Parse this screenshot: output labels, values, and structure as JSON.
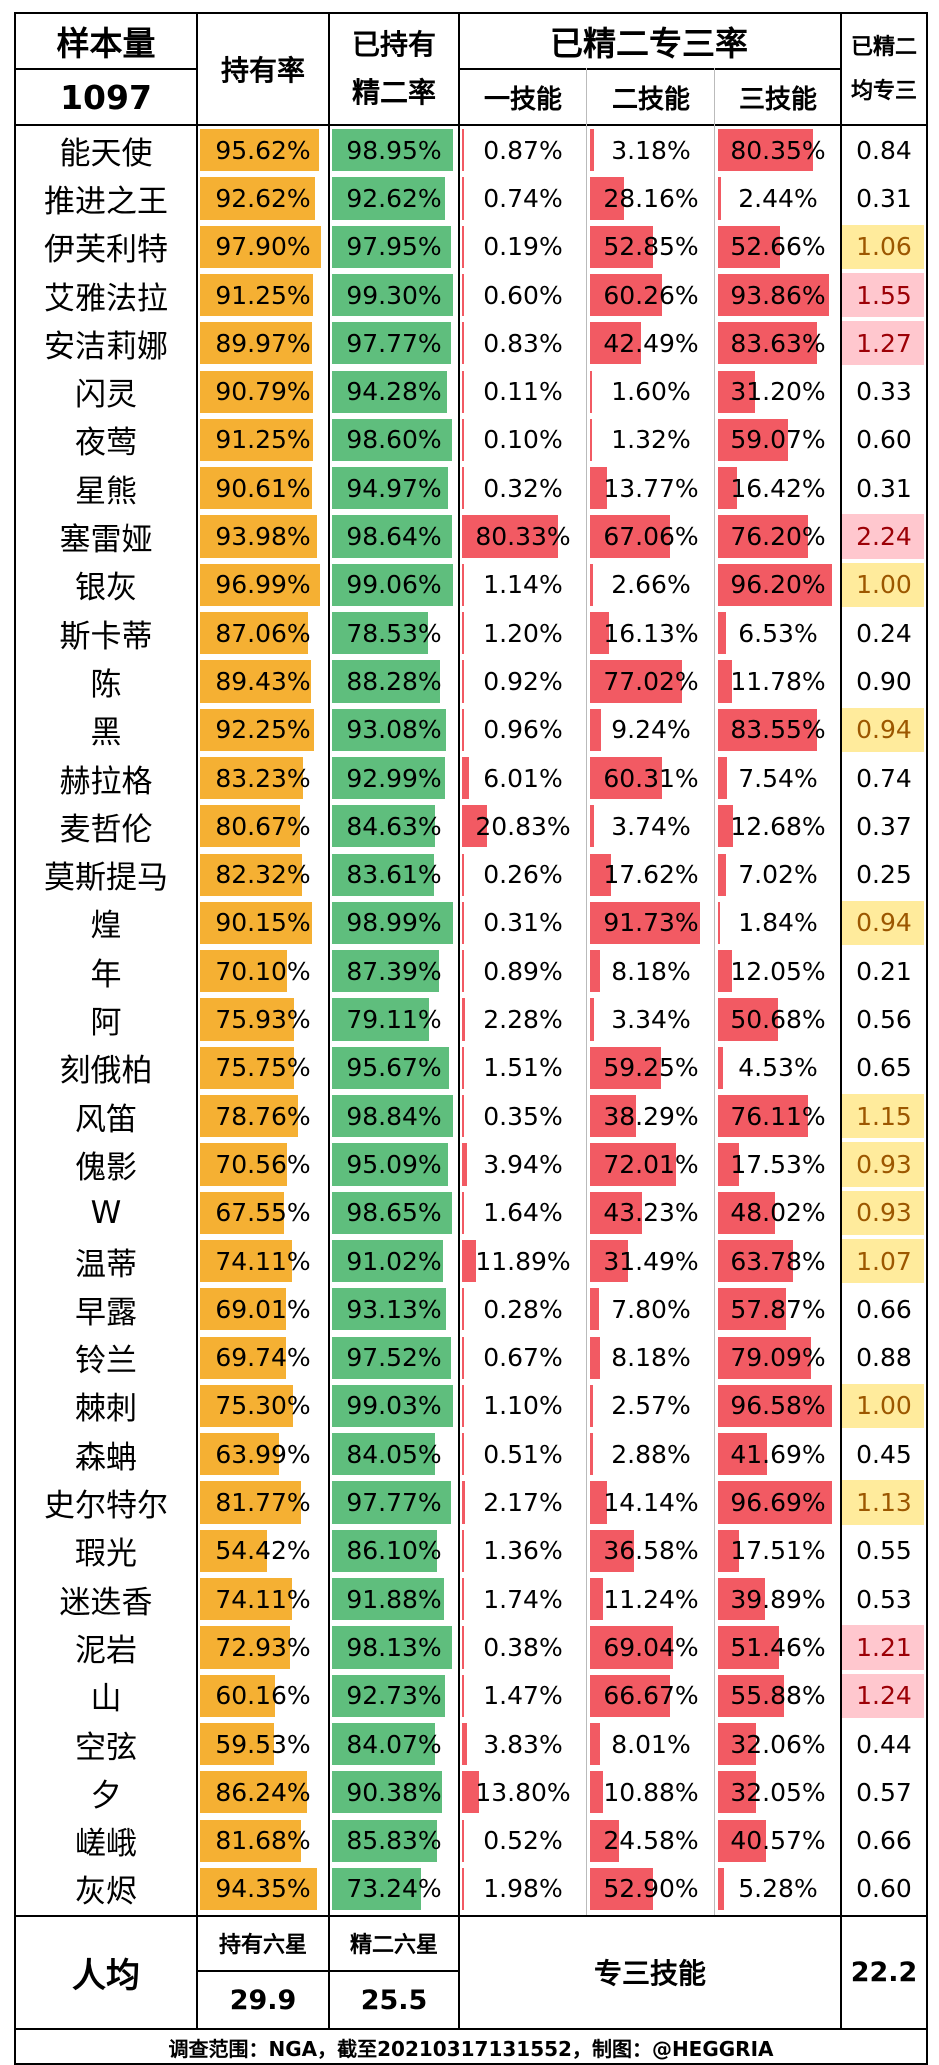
{
  "header": {
    "sample_label": "样本量",
    "sample_value": "1097",
    "own_rate": "持有率",
    "e2_rate_line1": "已持有",
    "e2_rate_line2": "精二率",
    "m3_group": "已精二专三率",
    "skill1": "一技能",
    "skill2": "二技能",
    "skill3": "三技能",
    "avg_m3_line1": "已精二",
    "avg_m3_line2": "均专三"
  },
  "summary": {
    "label": "人均",
    "own_six_label": "持有六星",
    "own_six_value": "29.9",
    "e2_six_label": "精二六星",
    "e2_six_value": "25.5",
    "m3_label": "专三技能",
    "m3_value": "22.2"
  },
  "footer": "调查范围：NGA，截至20210317131552，制图：@HEGGRIA",
  "colors": {
    "own_bar": "#F5B033",
    "e2_bar": "#5FBE7D",
    "skill_bar": "#F25A63",
    "highlight_yellow": "#FFEB9C",
    "highlight_red": "#FFC7CE",
    "text_yellow": "#9C5700",
    "text_red": "#9C0006"
  },
  "chart_data": {
    "type": "table",
    "columns": [
      "持有率",
      "已持有精二率",
      "一技能",
      "二技能",
      "三技能",
      "已精二均专三"
    ],
    "rows": [
      {
        "name": "能天使",
        "own": "95.62%",
        "e2": "98.95%",
        "s1": "0.87%",
        "s2": "3.18%",
        "s3": "80.35%",
        "avg": "0.84",
        "hl": ""
      },
      {
        "name": "推进之王",
        "own": "92.62%",
        "e2": "92.62%",
        "s1": "0.74%",
        "s2": "28.16%",
        "s3": "2.44%",
        "avg": "0.31",
        "hl": ""
      },
      {
        "name": "伊芙利特",
        "own": "97.90%",
        "e2": "97.95%",
        "s1": "0.19%",
        "s2": "52.85%",
        "s3": "52.66%",
        "avg": "1.06",
        "hl": "yellow"
      },
      {
        "name": "艾雅法拉",
        "own": "91.25%",
        "e2": "99.30%",
        "s1": "0.60%",
        "s2": "60.26%",
        "s3": "93.86%",
        "avg": "1.55",
        "hl": "red"
      },
      {
        "name": "安洁莉娜",
        "own": "89.97%",
        "e2": "97.77%",
        "s1": "0.83%",
        "s2": "42.49%",
        "s3": "83.63%",
        "avg": "1.27",
        "hl": "red"
      },
      {
        "name": "闪灵",
        "own": "90.79%",
        "e2": "94.28%",
        "s1": "0.11%",
        "s2": "1.60%",
        "s3": "31.20%",
        "avg": "0.33",
        "hl": ""
      },
      {
        "name": "夜莺",
        "own": "91.25%",
        "e2": "98.60%",
        "s1": "0.10%",
        "s2": "1.32%",
        "s3": "59.07%",
        "avg": "0.60",
        "hl": ""
      },
      {
        "name": "星熊",
        "own": "90.61%",
        "e2": "94.97%",
        "s1": "0.32%",
        "s2": "13.77%",
        "s3": "16.42%",
        "avg": "0.31",
        "hl": ""
      },
      {
        "name": "塞雷娅",
        "own": "93.98%",
        "e2": "98.64%",
        "s1": "80.33%",
        "s2": "67.06%",
        "s3": "76.20%",
        "avg": "2.24",
        "hl": "red"
      },
      {
        "name": "银灰",
        "own": "96.99%",
        "e2": "99.06%",
        "s1": "1.14%",
        "s2": "2.66%",
        "s3": "96.20%",
        "avg": "1.00",
        "hl": "yellow"
      },
      {
        "name": "斯卡蒂",
        "own": "87.06%",
        "e2": "78.53%",
        "s1": "1.20%",
        "s2": "16.13%",
        "s3": "6.53%",
        "avg": "0.24",
        "hl": ""
      },
      {
        "name": "陈",
        "own": "89.43%",
        "e2": "88.28%",
        "s1": "0.92%",
        "s2": "77.02%",
        "s3": "11.78%",
        "avg": "0.90",
        "hl": ""
      },
      {
        "name": "黑",
        "own": "92.25%",
        "e2": "93.08%",
        "s1": "0.96%",
        "s2": "9.24%",
        "s3": "83.55%",
        "avg": "0.94",
        "hl": "yellow"
      },
      {
        "name": "赫拉格",
        "own": "83.23%",
        "e2": "92.99%",
        "s1": "6.01%",
        "s2": "60.31%",
        "s3": "7.54%",
        "avg": "0.74",
        "hl": ""
      },
      {
        "name": "麦哲伦",
        "own": "80.67%",
        "e2": "84.63%",
        "s1": "20.83%",
        "s2": "3.74%",
        "s3": "12.68%",
        "avg": "0.37",
        "hl": ""
      },
      {
        "name": "莫斯提马",
        "own": "82.32%",
        "e2": "83.61%",
        "s1": "0.26%",
        "s2": "17.62%",
        "s3": "7.02%",
        "avg": "0.25",
        "hl": ""
      },
      {
        "name": "煌",
        "own": "90.15%",
        "e2": "98.99%",
        "s1": "0.31%",
        "s2": "91.73%",
        "s3": "1.84%",
        "avg": "0.94",
        "hl": "yellow"
      },
      {
        "name": "年",
        "own": "70.10%",
        "e2": "87.39%",
        "s1": "0.89%",
        "s2": "8.18%",
        "s3": "12.05%",
        "avg": "0.21",
        "hl": ""
      },
      {
        "name": "阿",
        "own": "75.93%",
        "e2": "79.11%",
        "s1": "2.28%",
        "s2": "3.34%",
        "s3": "50.68%",
        "avg": "0.56",
        "hl": ""
      },
      {
        "name": "刻俄柏",
        "own": "75.75%",
        "e2": "95.67%",
        "s1": "1.51%",
        "s2": "59.25%",
        "s3": "4.53%",
        "avg": "0.65",
        "hl": ""
      },
      {
        "name": "风笛",
        "own": "78.76%",
        "e2": "98.84%",
        "s1": "0.35%",
        "s2": "38.29%",
        "s3": "76.11%",
        "avg": "1.15",
        "hl": "yellow"
      },
      {
        "name": "傀影",
        "own": "70.56%",
        "e2": "95.09%",
        "s1": "3.94%",
        "s2": "72.01%",
        "s3": "17.53%",
        "avg": "0.93",
        "hl": "yellow"
      },
      {
        "name": "W",
        "own": "67.55%",
        "e2": "98.65%",
        "s1": "1.64%",
        "s2": "43.23%",
        "s3": "48.02%",
        "avg": "0.93",
        "hl": "yellow"
      },
      {
        "name": "温蒂",
        "own": "74.11%",
        "e2": "91.02%",
        "s1": "11.89%",
        "s2": "31.49%",
        "s3": "63.78%",
        "avg": "1.07",
        "hl": "yellow"
      },
      {
        "name": "早露",
        "own": "69.01%",
        "e2": "93.13%",
        "s1": "0.28%",
        "s2": "7.80%",
        "s3": "57.87%",
        "avg": "0.66",
        "hl": ""
      },
      {
        "name": "铃兰",
        "own": "69.74%",
        "e2": "97.52%",
        "s1": "0.67%",
        "s2": "8.18%",
        "s3": "79.09%",
        "avg": "0.88",
        "hl": ""
      },
      {
        "name": "棘刺",
        "own": "75.30%",
        "e2": "99.03%",
        "s1": "1.10%",
        "s2": "2.57%",
        "s3": "96.58%",
        "avg": "1.00",
        "hl": "yellow"
      },
      {
        "name": "森蚺",
        "own": "63.99%",
        "e2": "84.05%",
        "s1": "0.51%",
        "s2": "2.88%",
        "s3": "41.69%",
        "avg": "0.45",
        "hl": ""
      },
      {
        "name": "史尔特尔",
        "own": "81.77%",
        "e2": "97.77%",
        "s1": "2.17%",
        "s2": "14.14%",
        "s3": "96.69%",
        "avg": "1.13",
        "hl": "yellow"
      },
      {
        "name": "瑕光",
        "own": "54.42%",
        "e2": "86.10%",
        "s1": "1.36%",
        "s2": "36.58%",
        "s3": "17.51%",
        "avg": "0.55",
        "hl": ""
      },
      {
        "name": "迷迭香",
        "own": "74.11%",
        "e2": "91.88%",
        "s1": "1.74%",
        "s2": "11.24%",
        "s3": "39.89%",
        "avg": "0.53",
        "hl": ""
      },
      {
        "name": "泥岩",
        "own": "72.93%",
        "e2": "98.13%",
        "s1": "0.38%",
        "s2": "69.04%",
        "s3": "51.46%",
        "avg": "1.21",
        "hl": "red"
      },
      {
        "name": "山",
        "own": "60.16%",
        "e2": "92.73%",
        "s1": "1.47%",
        "s2": "66.67%",
        "s3": "55.88%",
        "avg": "1.24",
        "hl": "red"
      },
      {
        "name": "空弦",
        "own": "59.53%",
        "e2": "84.07%",
        "s1": "3.83%",
        "s2": "8.01%",
        "s3": "32.06%",
        "avg": "0.44",
        "hl": ""
      },
      {
        "name": "夕",
        "own": "86.24%",
        "e2": "90.38%",
        "s1": "13.80%",
        "s2": "10.88%",
        "s3": "32.05%",
        "avg": "0.57",
        "hl": ""
      },
      {
        "name": "嵯峨",
        "own": "81.68%",
        "e2": "85.83%",
        "s1": "0.52%",
        "s2": "24.58%",
        "s3": "40.57%",
        "avg": "0.66",
        "hl": ""
      },
      {
        "name": "灰烬",
        "own": "94.35%",
        "e2": "73.24%",
        "s1": "1.98%",
        "s2": "52.90%",
        "s3": "5.28%",
        "avg": "0.60",
        "hl": ""
      }
    ]
  }
}
